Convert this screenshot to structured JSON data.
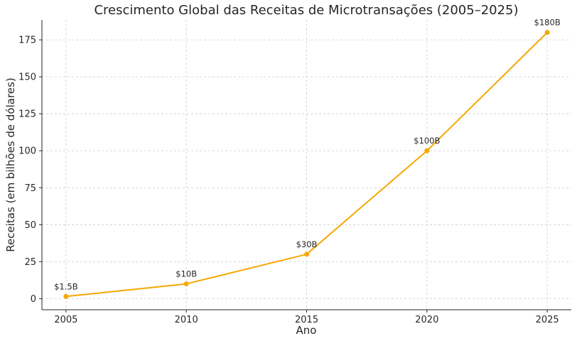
{
  "chart_data": {
    "type": "line",
    "title": "Crescimento Global das Receitas de Microtransações (2005–2025)",
    "xlabel": "Ano",
    "ylabel": "Receitas (em bilhões de dólares)",
    "x": [
      2005,
      2010,
      2015,
      2020,
      2025
    ],
    "xticks": [
      "2005",
      "2010",
      "2015",
      "2020",
      "2025"
    ],
    "yticks": [
      "0",
      "25",
      "50",
      "75",
      "100",
      "125",
      "150",
      "175"
    ],
    "ylim": [
      -7.5,
      188.5
    ],
    "xlim": [
      2004,
      2026
    ],
    "grid": true,
    "series": [
      {
        "values": [
          1.5,
          10,
          30,
          100,
          180
        ],
        "labels": [
          "$1.5B",
          "$10B",
          "$30B",
          "$100B",
          "$180B"
        ],
        "color": "#f5a800"
      }
    ]
  }
}
